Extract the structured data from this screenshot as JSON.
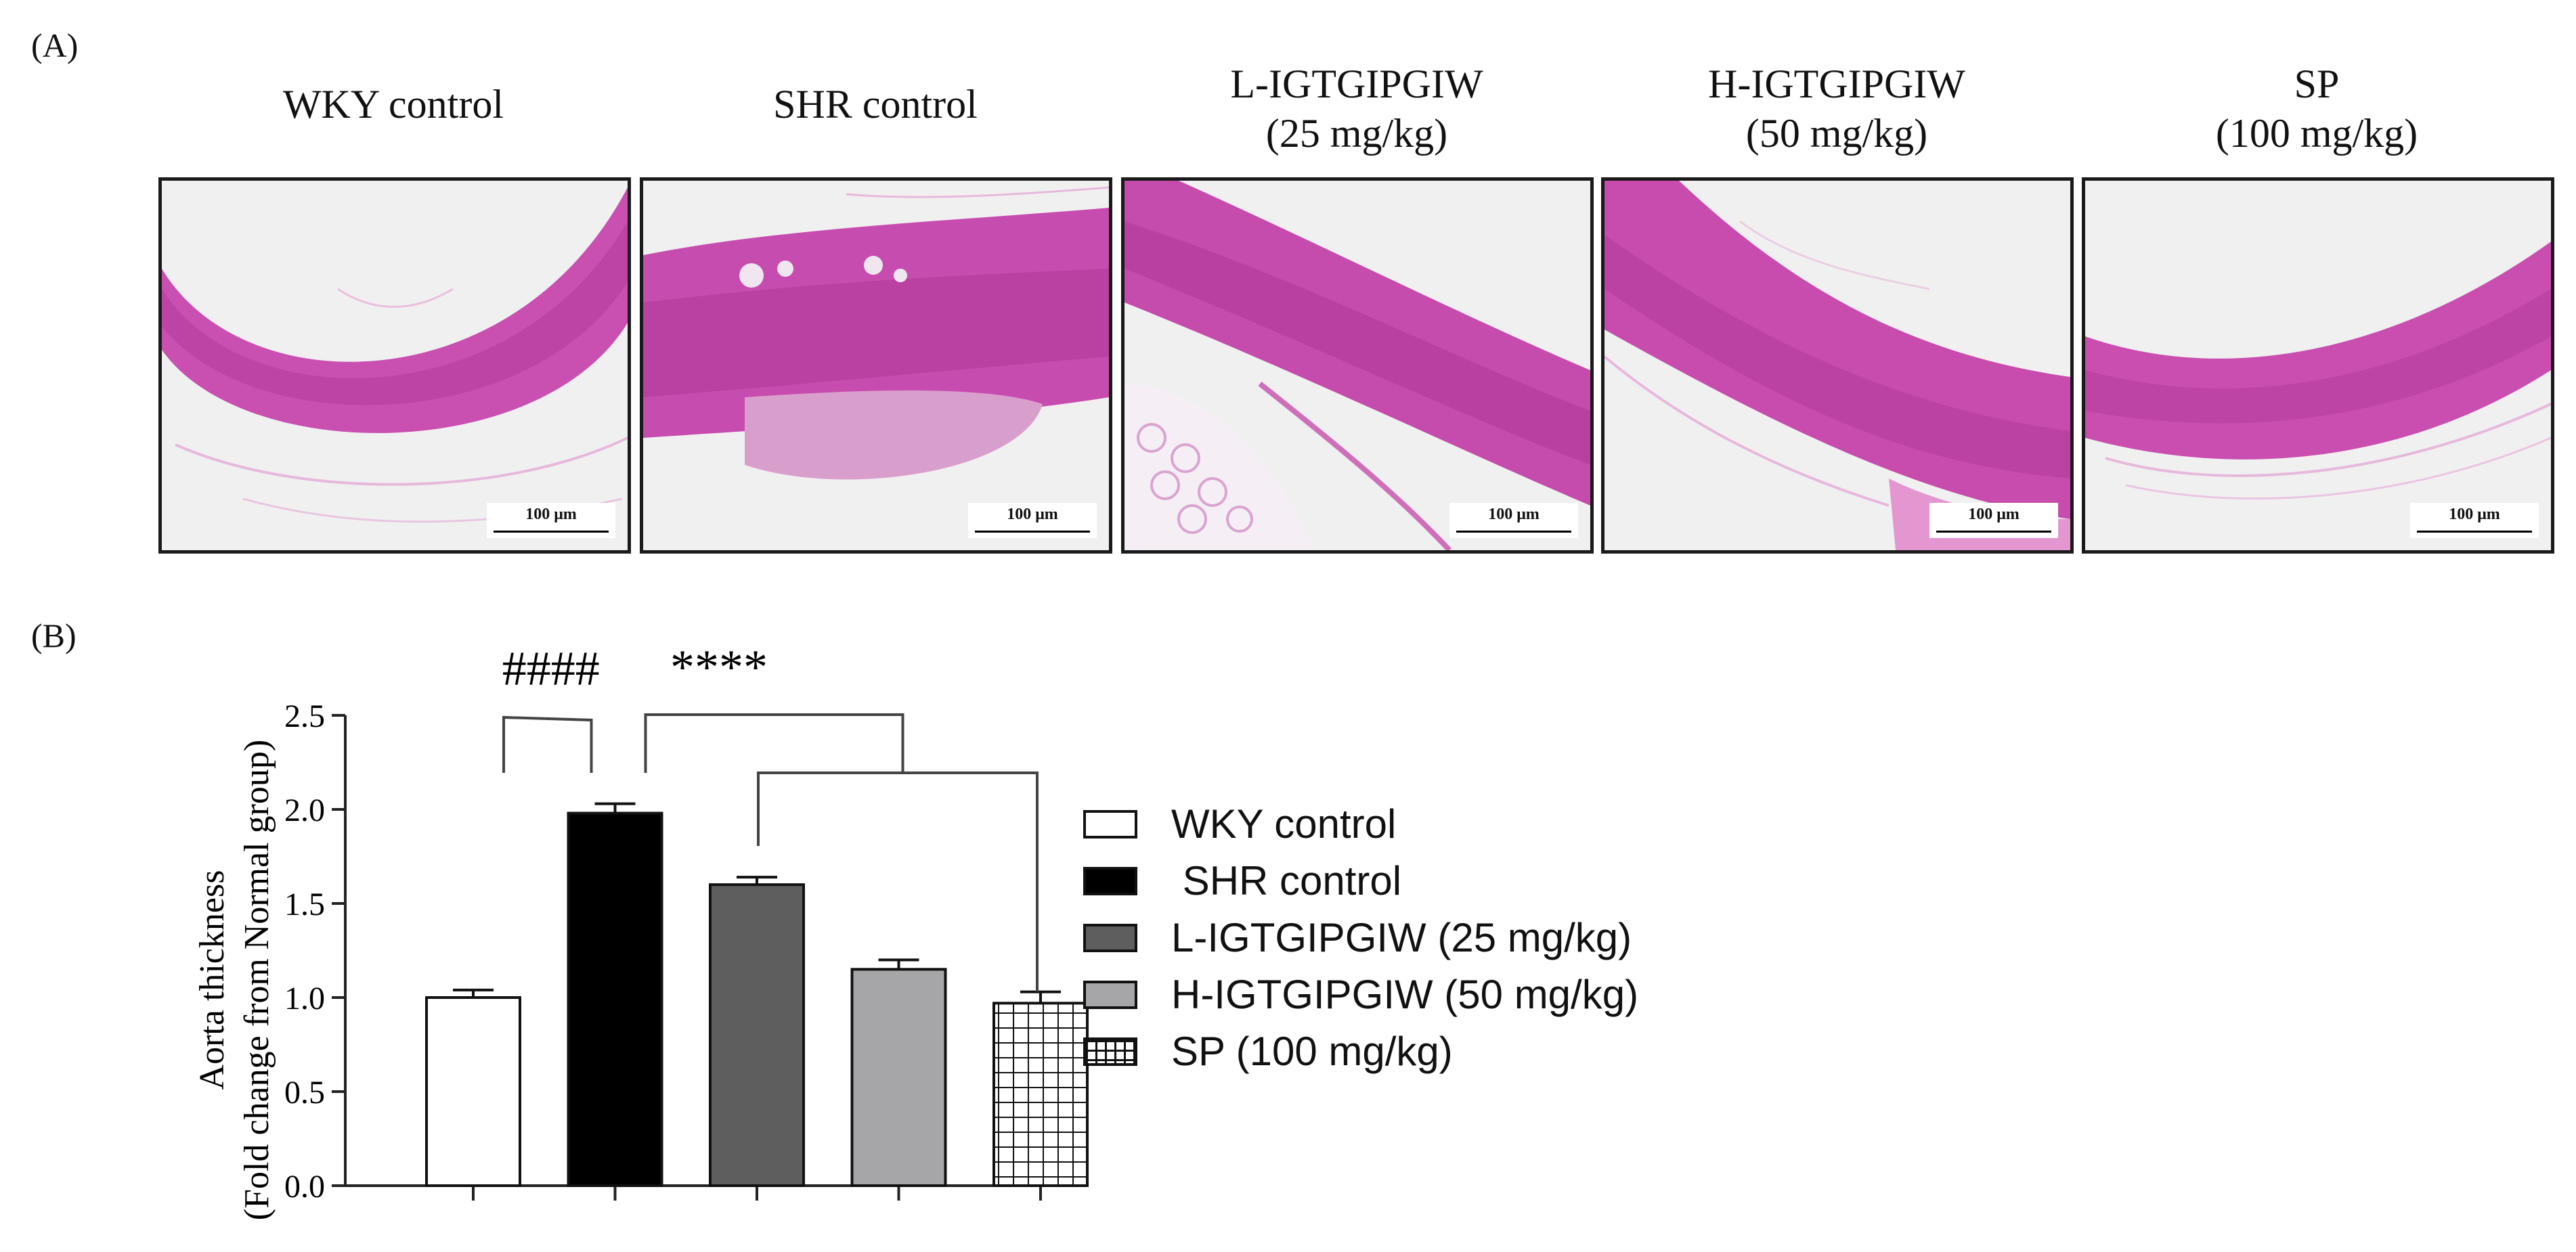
{
  "panels": {
    "a_label": "(A)",
    "b_label": "(B)"
  },
  "images": [
    {
      "title_line1": "WKY control",
      "title_line2": "",
      "scale_bar": "100 μm"
    },
    {
      "title_line1": "SHR control",
      "title_line2": "",
      "scale_bar": "100 μm"
    },
    {
      "title_line1": "L-IGTGIPGIW",
      "title_line2": "(25 mg/kg)",
      "scale_bar": "100 μm"
    },
    {
      "title_line1": "H-IGTGIPGIW",
      "title_line2": "(50 mg/kg)",
      "scale_bar": "100 μm"
    },
    {
      "title_line1": "SP",
      "title_line2": "(100 mg/kg)",
      "scale_bar": "100 μm"
    }
  ],
  "chart_data": {
    "type": "bar",
    "title": "",
    "ylabel_line1": "Aorta thickness",
    "ylabel_line2": "(Fold change from Normal group)",
    "xlabel": "",
    "ylim": [
      0,
      2.5
    ],
    "yticks": [
      0.0,
      0.5,
      1.0,
      1.5,
      2.0,
      2.5
    ],
    "ytick_labels": [
      "0.0",
      "0.5",
      "1.0",
      "1.5",
      "2.0",
      "2.5"
    ],
    "categories": [
      "WKY control",
      "SHR control",
      "L-IGTGIPGIW (25 mg/kg)",
      "H-IGTGIPGIW (50 mg/kg)",
      "SP (100 mg/kg)"
    ],
    "legend_labels": [
      "WKY control",
      " SHR control",
      "L-IGTGIPGIW (25 mg/kg)",
      "H-IGTGIPGIW (50 mg/kg)",
      "SP (100 mg/kg)"
    ],
    "values": [
      1.0,
      1.98,
      1.6,
      1.15,
      0.97
    ],
    "errors": [
      0.04,
      0.05,
      0.04,
      0.05,
      0.06
    ],
    "fills": [
      "#ffffff",
      "#000000",
      "#5e5e5e",
      "#a6a6a8",
      "grid"
    ],
    "significance": [
      {
        "label": "####",
        "between": [
          "WKY control",
          "SHR control"
        ]
      },
      {
        "label": "****",
        "between": [
          "SHR control",
          "L-IGTGIPGIW (25 mg/kg)",
          "H-IGTGIPGIW (50 mg/kg)",
          "SP (100 mg/kg)"
        ]
      }
    ],
    "legend_position": "right",
    "grid": false
  }
}
